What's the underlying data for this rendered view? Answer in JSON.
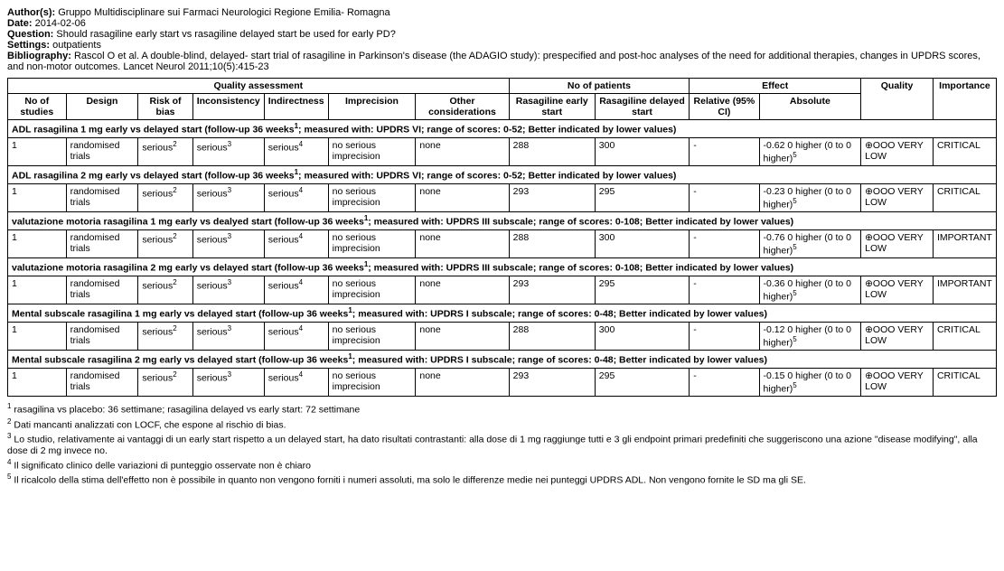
{
  "header": {
    "authors_label": "Author(s):",
    "authors": "Gruppo Multidisciplinare sui Farmaci Neurologici Regione Emilia- Romagna",
    "date_label": "Date:",
    "date": "2014-02-06",
    "question_label": "Question:",
    "question": "Should rasagiline early start vs rasagiline delayed start be used for early PD?",
    "settings_label": "Settings:",
    "settings": "outpatients",
    "bibliography_label": "Bibliography:",
    "bibliography": "Rascol O et al. A double-blind, delayed- start trial of rasagiline in Parkinson's disease (the ADAGIO study): prespecified and post-hoc analyses of the need for additional therapies, changes in UPDRS scores, and non-motor outcomes. Lancet Neurol 2011;10(5):415-23"
  },
  "columns": {
    "group_qa": "Quality assessment",
    "group_np": "No of patients",
    "group_ef": "Effect",
    "no_studies": "No of studies",
    "design": "Design",
    "risk_of_bias": "Risk of bias",
    "inconsistency": "Inconsistency",
    "indirectness": "Indirectness",
    "imprecision": "Imprecision",
    "other": "Other considerations",
    "arm1": "Rasagiline early start",
    "arm2": "Rasagiline delayed start",
    "relative": "Relative (95% CI)",
    "absolute": "Absolute",
    "quality": "Quality",
    "importance": "Importance"
  },
  "sections": [
    {
      "title": "ADL rasagilina 1 mg early vs delayed start (follow-up 36 weeks",
      "title_sup": "1",
      "title_post": "; measured with: UPDRS VI; range of scores: 0-52; Better indicated by lower values)",
      "row": {
        "n": "1",
        "design": "randomised trials",
        "rob": "serious",
        "rob_s": "2",
        "inc": "serious",
        "inc_s": "3",
        "ind": "serious",
        "ind_s": "4",
        "imp": "no serious imprecision",
        "oth": "none",
        "a1": "288",
        "a2": "300",
        "rel": "-",
        "abs": "-0.62 0 higher (0 to 0 higher)",
        "abs_s": "5",
        "qual": "⊕OOO VERY LOW",
        "impo": "CRITICAL"
      }
    },
    {
      "title": "ADL rasagilina 2 mg early vs delayed start (follow-up 36 weeks",
      "title_sup": "1",
      "title_post": "; measured with: UPDRS VI; range of scores: 0-52; Better indicated by lower values)",
      "row": {
        "n": "1",
        "design": "randomised trials",
        "rob": "serious",
        "rob_s": "2",
        "inc": "serious",
        "inc_s": "3",
        "ind": "serious",
        "ind_s": "4",
        "imp": "no serious imprecision",
        "oth": "none",
        "a1": "293",
        "a2": "295",
        "rel": "-",
        "abs": "-0.23 0 higher (0 to 0 higher)",
        "abs_s": "5",
        "qual": "⊕OOO VERY LOW",
        "impo": "CRITICAL"
      }
    },
    {
      "title": "valutazione motoria rasagilina 1 mg early vs dealyed start (follow-up 36 weeks",
      "title_sup": "1",
      "title_post": "; measured with: UPDRS III subscale; range of scores: 0-108; Better indicated by lower values)",
      "row": {
        "n": "1",
        "design": "randomised trials",
        "rob": "serious",
        "rob_s": "2",
        "inc": "serious",
        "inc_s": "3",
        "ind": "serious",
        "ind_s": "4",
        "imp": "no serious imprecision",
        "oth": "none",
        "a1": "288",
        "a2": "300",
        "rel": "-",
        "abs": "-0.76 0 higher (0 to 0 higher)",
        "abs_s": "5",
        "qual": "⊕OOO VERY LOW",
        "impo": "IMPORTANT"
      }
    },
    {
      "title": "valutazione motoria rasagilina 2 mg early vs delayed start (follow-up 36 weeks",
      "title_sup": "1",
      "title_post": "; measured with: UPDRS III subscale; range of scores: 0-108; Better indicated by lower values)",
      "row": {
        "n": "1",
        "design": "randomised trials",
        "rob": "serious",
        "rob_s": "2",
        "inc": "serious",
        "inc_s": "3",
        "ind": "serious",
        "ind_s": "4",
        "imp": "no serious imprecision",
        "oth": "none",
        "a1": "293",
        "a2": "295",
        "rel": "-",
        "abs": "-0.36 0 higher (0 to 0 higher)",
        "abs_s": "5",
        "qual": "⊕OOO VERY LOW",
        "impo": "IMPORTANT"
      }
    },
    {
      "title": "Mental subscale rasagilina 1 mg early vs delayed start (follow-up 36 weeks",
      "title_sup": "1",
      "title_post": "; measured with: UPDRS I subscale; range of scores: 0-48; Better indicated by lower values)",
      "row": {
        "n": "1",
        "design": "randomised trials",
        "rob": "serious",
        "rob_s": "2",
        "inc": "serious",
        "inc_s": "3",
        "ind": "serious",
        "ind_s": "4",
        "imp": "no serious imprecision",
        "oth": "none",
        "a1": "288",
        "a2": "300",
        "rel": "-",
        "abs": "-0.12 0 higher (0 to 0 higher)",
        "abs_s": "5",
        "qual": "⊕OOO VERY LOW",
        "impo": "CRITICAL"
      }
    },
    {
      "title": "Mental subscale rasagilina 2 mg early vs delayed start (follow-up 36 weeks",
      "title_sup": "1",
      "title_post": "; measured with: UPDRS I subscale; range of scores: 0-48; Better indicated by lower values)",
      "row": {
        "n": "1",
        "design": "randomised trials",
        "rob": "serious",
        "rob_s": "2",
        "inc": "serious",
        "inc_s": "3",
        "ind": "serious",
        "ind_s": "4",
        "imp": "no serious imprecision",
        "oth": "none",
        "a1": "293",
        "a2": "295",
        "rel": "-",
        "abs": "-0.15 0 higher (0 to 0 higher)",
        "abs_s": "5",
        "qual": "⊕OOO VERY LOW",
        "impo": "CRITICAL"
      }
    }
  ],
  "footnotes": [
    {
      "n": "1",
      "t": "rasagilina vs placebo: 36 settimane; rasagilina delayed vs early start: 72 settimane"
    },
    {
      "n": "2",
      "t": "Dati mancanti analizzati con LOCF, che espone al rischio di bias."
    },
    {
      "n": "3",
      "t": "Lo studio, relativamente ai vantaggi di un early start rispetto a un delayed start, ha dato risultati contrastanti: alla dose di 1 mg raggiunge tutti e 3 gli endpoint primari predefiniti che suggeriscono una azione \"disease modifying\", alla dose di 2 mg invece no."
    },
    {
      "n": "4",
      "t": "Il significato clinico delle variazioni di punteggio osservate non è chiaro"
    },
    {
      "n": "5",
      "t": "Il ricalcolo della stima dell'effetto non è possibile in quanto non vengono forniti i numeri assoluti, ma solo le differenze medie nei punteggi UPDRS ADL. Non vengono fornite le SD ma gli SE."
    }
  ]
}
